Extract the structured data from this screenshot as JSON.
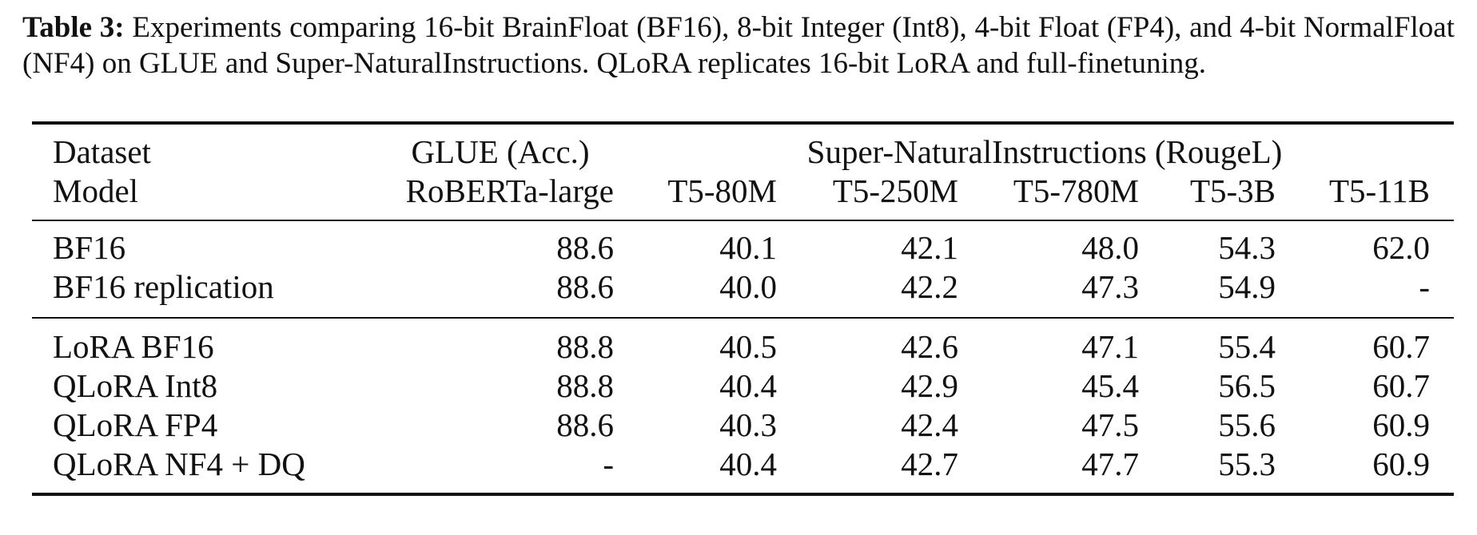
{
  "caption": {
    "label": "Table 3:",
    "text": "Experiments comparing 16-bit BrainFloat (BF16), 8-bit Integer (Int8), 4-bit Float (FP4), and 4-bit NormalFloat (NF4) on GLUE and Super-NaturalInstructions. QLoRA replicates 16-bit LoRA and full-finetuning."
  },
  "table": {
    "header_top": [
      "Dataset",
      "GLUE (Acc.)",
      "Super-NaturalInstructions (RougeL)"
    ],
    "header": [
      "Model",
      "RoBERTa-large",
      "T5-80M",
      "T5-250M",
      "T5-780M",
      "T5-3B",
      "T5-11B"
    ],
    "groups": [
      [
        [
          "BF16",
          "88.6",
          "40.1",
          "42.1",
          "48.0",
          "54.3",
          "62.0"
        ],
        [
          "BF16 replication",
          "88.6",
          "40.0",
          "42.2",
          "47.3",
          "54.9",
          "-"
        ]
      ],
      [
        [
          "LoRA BF16",
          "88.8",
          "40.5",
          "42.6",
          "47.1",
          "55.4",
          "60.7"
        ],
        [
          "QLoRA Int8",
          "88.8",
          "40.4",
          "42.9",
          "45.4",
          "56.5",
          "60.7"
        ],
        [
          "QLoRA FP4",
          "88.6",
          "40.3",
          "42.4",
          "47.5",
          "55.6",
          "60.9"
        ],
        [
          "QLoRA NF4 + DQ",
          "-",
          "40.4",
          "42.7",
          "47.7",
          "55.3",
          "60.9"
        ]
      ]
    ]
  }
}
